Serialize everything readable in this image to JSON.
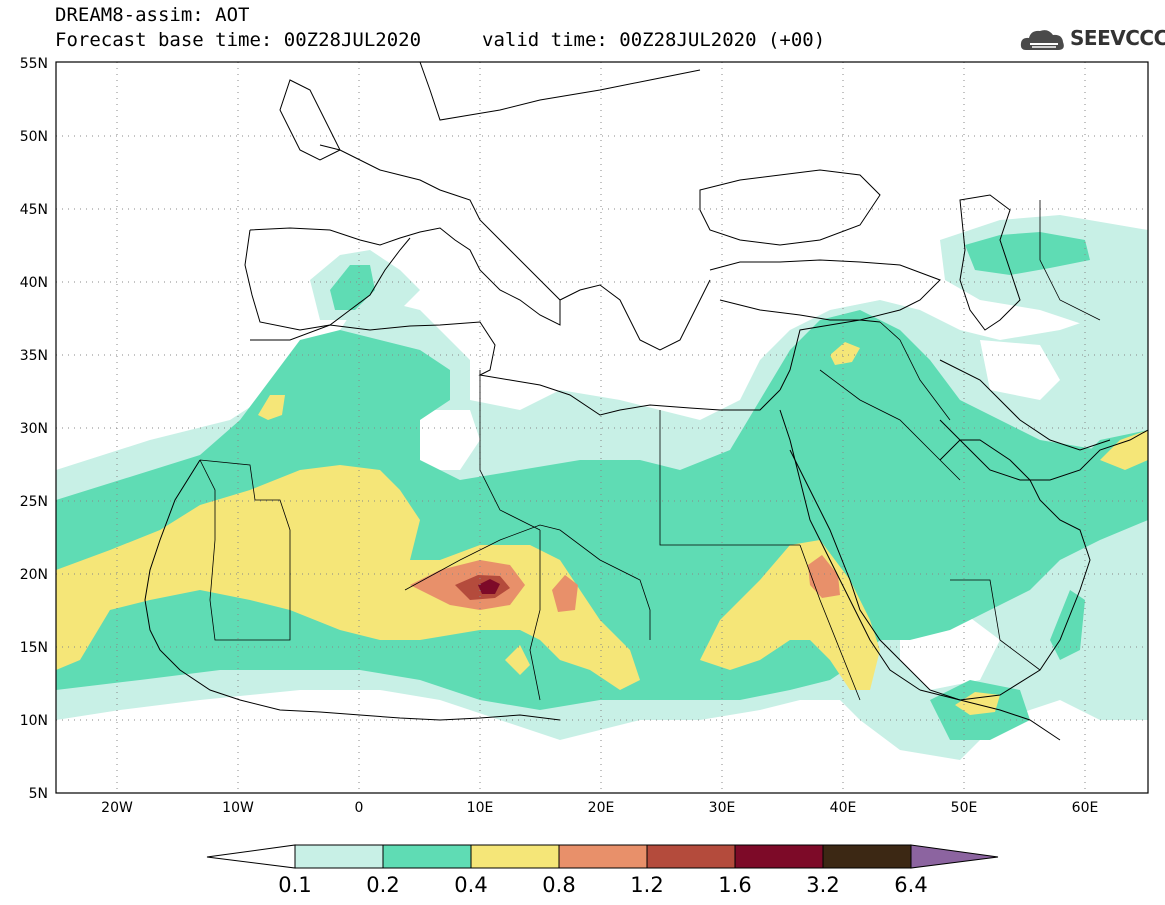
{
  "header": {
    "title": "DREAM8-assim: AOT",
    "base_time": "Forecast base time: 00Z28JUL2020",
    "valid_time": "valid time: 00Z28JUL2020 (+00)"
  },
  "logo": {
    "text": "SEEVCCC",
    "icon": "cloud-icon"
  },
  "map": {
    "lon_range": [
      -25,
      65
    ],
    "lat_range": [
      5,
      55
    ],
    "lat_labels": [
      "5N",
      "10N",
      "15N",
      "20N",
      "25N",
      "30N",
      "35N",
      "40N",
      "45N",
      "50N",
      "55N"
    ],
    "lon_labels": [
      "20W",
      "10W",
      "0",
      "10E",
      "20E",
      "30E",
      "40E",
      "50E",
      "60E"
    ],
    "grid": "dotted"
  },
  "colorbar": {
    "labels": [
      "0.1",
      "0.2",
      "0.4",
      "0.8",
      "1.2",
      "1.6",
      "3.2",
      "6.4"
    ],
    "colors": [
      "#ffffff",
      "#c8f0e6",
      "#5fdcb4",
      "#f5e678",
      "#e8906a",
      "#b44b3c",
      "#7d0a28",
      "#3c2814",
      "#8c64a0"
    ]
  }
}
